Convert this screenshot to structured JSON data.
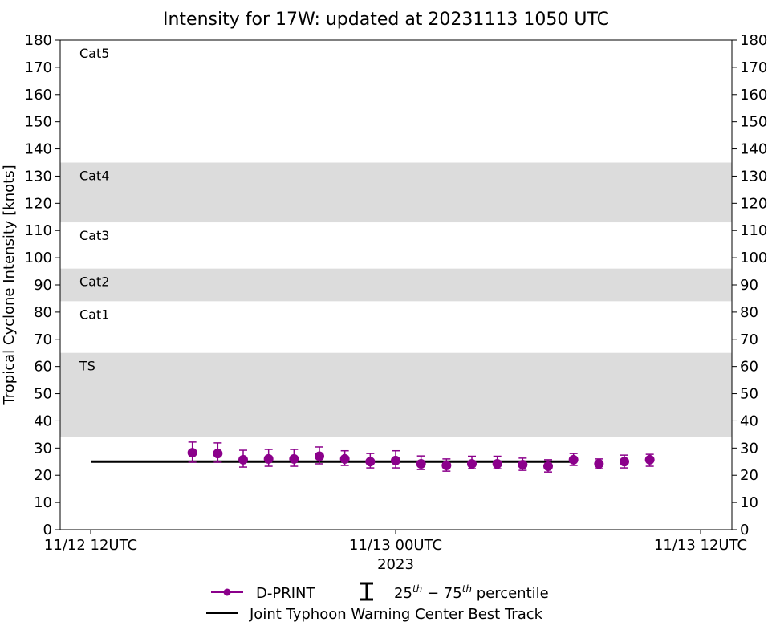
{
  "chart_data": {
    "type": "scatter",
    "title": "Intensity for 17W: updated at 20231113 1050 UTC",
    "xlabel": "2023",
    "ylabel": "Tropical Cyclone Intensity [knots]",
    "ylim": [
      0,
      180
    ],
    "yticks": [
      0,
      10,
      20,
      30,
      40,
      50,
      60,
      70,
      80,
      90,
      100,
      110,
      120,
      130,
      140,
      150,
      160,
      170,
      180
    ],
    "xlim_hours": [
      -1.2,
      25.2
    ],
    "xticks": [
      {
        "hour": 0,
        "label": "11/12 12UTC"
      },
      {
        "hour": 12,
        "label": "11/13 00UTC"
      },
      {
        "hour": 24,
        "label": "11/13 12UTC"
      }
    ],
    "x_units": "hours since 11/12 12UTC",
    "categories_bands": [
      {
        "label": "Cat5",
        "min": 135,
        "max": 180,
        "shaded": false
      },
      {
        "label": "Cat4",
        "min": 113,
        "max": 135,
        "shaded": true
      },
      {
        "label": "Cat3",
        "min": 96,
        "max": 113,
        "shaded": false
      },
      {
        "label": "Cat2",
        "min": 84,
        "max": 96,
        "shaded": true
      },
      {
        "label": "Cat1",
        "min": 65,
        "max": 84,
        "shaded": false
      },
      {
        "label": "TS",
        "min": 34,
        "max": 65,
        "shaded": true
      }
    ],
    "series": [
      {
        "name": "D-PRINT",
        "color": "#8b008b",
        "x": [
          4,
          5,
          6,
          7,
          8,
          9,
          10,
          11,
          12,
          13,
          14,
          15,
          16,
          17,
          18,
          19,
          20,
          21,
          22
        ],
        "y": [
          28.3,
          28.0,
          25.7,
          26.0,
          26.0,
          27.0,
          26.0,
          25.0,
          25.4,
          24.2,
          23.6,
          24.2,
          24.2,
          23.9,
          23.3,
          25.7,
          24.2,
          25.0,
          25.7
        ],
        "p25": [
          24.8,
          24.8,
          23.0,
          23.3,
          23.3,
          24.2,
          23.6,
          22.7,
          22.7,
          22.1,
          21.5,
          22.4,
          22.4,
          21.8,
          21.2,
          23.6,
          22.4,
          22.7,
          23.3
        ],
        "p75": [
          32.2,
          31.9,
          29.2,
          29.5,
          29.5,
          30.4,
          29.0,
          28.0,
          29.0,
          27.1,
          26.0,
          27.0,
          27.0,
          26.3,
          25.7,
          28.0,
          26.0,
          27.4,
          27.7
        ]
      },
      {
        "name": "Joint Typhoon Warning Center Best Track",
        "color": "#000000",
        "x": [
          0,
          19
        ],
        "y": [
          25,
          25
        ]
      }
    ],
    "legend": {
      "placement": "bottom-center",
      "dprint": "D-PRINT",
      "pct_base1": "25",
      "pct_sup1": "th",
      "pct_dash": " − 75",
      "pct_sup2": "th",
      "pct_tail": " percentile",
      "besttrack": "Joint Typhoon Warning Center Best Track"
    }
  }
}
